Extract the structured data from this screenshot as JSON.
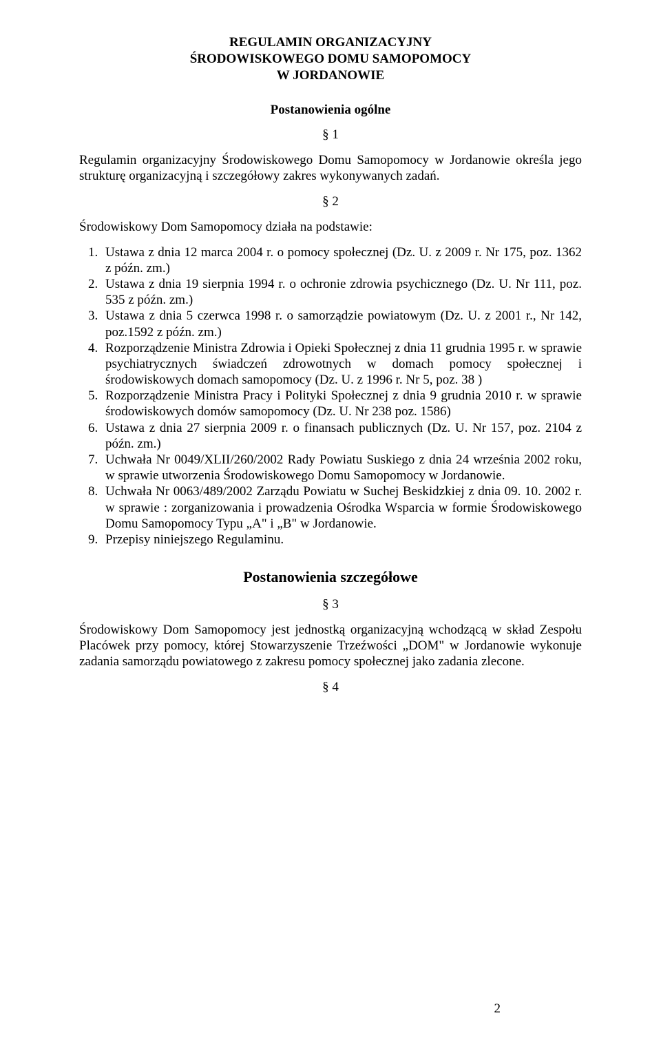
{
  "title_line1": "REGULAMIN ORGANIZACYJNY",
  "title_line2": "ŚRODOWISKOWEGO DOMU SAMOPOMOCY",
  "title_line3": "W JORDANOWIE",
  "heading_general": "Postanowienia ogólne",
  "sec1": "§ 1",
  "para1": "Regulamin organizacyjny Środowiskowego Domu Samopomocy w Jordanowie określa jego strukturę organizacyjną i szczegółowy zakres wykonywanych zadań.",
  "sec2": "§ 2",
  "para2_intro": "Środowiskowy Dom Samopomocy działa na podstawie:",
  "list": [
    "Ustawa z dnia 12 marca 2004 r. o pomocy społecznej (Dz. U. z 2009 r. Nr 175, poz. 1362 z późn. zm.)",
    "Ustawa z dnia 19 sierpnia 1994 r. o ochronie zdrowia psychicznego (Dz. U. Nr 111, poz. 535 z późn. zm.)",
    "Ustawa z dnia 5 czerwca 1998 r. o samorządzie powiatowym (Dz. U. z 2001 r., Nr 142, poz.1592 z późn. zm.)",
    "Rozporządzenie Ministra Zdrowia i Opieki Społecznej z dnia 11 grudnia 1995 r. w sprawie psychiatrycznych świadczeń zdrowotnych w domach pomocy społecznej i środowiskowych domach samopomocy (Dz. U. z 1996 r. Nr 5, poz. 38 )",
    "Rozporządzenie Ministra Pracy i Polityki Społecznej z dnia 9 grudnia 2010 r. w sprawie środowiskowych domów samopomocy (Dz. U. Nr 238 poz. 1586)",
    "Ustawa z dnia 27 sierpnia 2009 r. o finansach publicznych (Dz. U. Nr 157, poz. 2104 z późn. zm.)",
    "Uchwała Nr 0049/XLII/260/2002 Rady Powiatu Suskiego z dnia 24 września 2002 roku, w sprawie utworzenia Środowiskowego Domu Samopomocy w Jordanowie.",
    "Uchwała Nr 0063/489/2002 Zarządu Powiatu w Suchej Beskidzkiej z dnia 09. 10. 2002 r. w sprawie : zorganizowania i prowadzenia Ośrodka Wsparcia w formie Środowiskowego Domu Samopomocy Typu „A\" i „B\" w  Jordanowie.",
    "Przepisy niniejszego Regulaminu."
  ],
  "heading_detailed": "Postanowienia szczegółowe",
  "sec3": "§ 3",
  "para3": "Środowiskowy Dom Samopomocy jest jednostką organizacyjną wchodzącą w skład Zespołu Placówek przy pomocy, której Stowarzyszenie Trzeźwości „DOM\" w Jordanowie wykonuje zadania samorządu powiatowego z zakresu pomocy społecznej jako zadania zlecone.",
  "sec4": "§ 4",
  "page_number": "2"
}
